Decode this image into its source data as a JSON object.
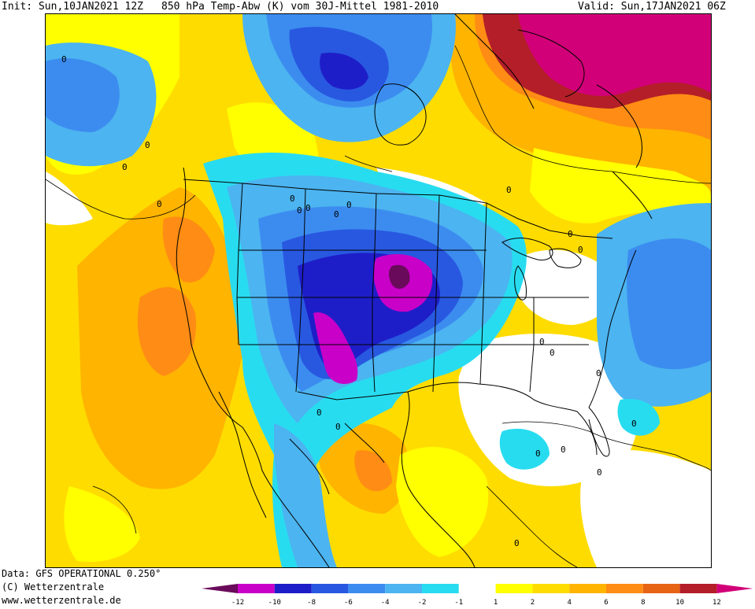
{
  "header": {
    "init": "Init: Sun,10JAN2021 12Z",
    "title": "850 hPa Temp-Abw (K) vom 30J-Mittel 1981-2010",
    "valid": "Valid: Sun,17JAN2021 06Z"
  },
  "footer": {
    "data_source": "Data: GFS OPERATIONAL 0.250°",
    "copyright": "(C) Wetterzentrale",
    "website": "www.wetterzentrale.de"
  },
  "legend": {
    "ticks": [
      "-12",
      "-10",
      "-8",
      "-6",
      "-4",
      "-2",
      "-1",
      "1",
      "2",
      "4",
      "6",
      "8",
      "10",
      "12"
    ],
    "colors": {
      "lt_-12": "#6a0a5a",
      "-12_-10": "#c800c8",
      "-10_-8": "#1e1ec8",
      "-8_-6": "#2858e0",
      "-6_-4": "#3c8cf0",
      "-4_-2": "#4cb4f0",
      "-2_-1": "#28dcf0",
      "-1_1": "#ffffff",
      "1_2": "#ffff00",
      "2_4": "#ffdc00",
      "4_6": "#ffb400",
      "6_8": "#ff8c14",
      "8_10": "#e66414",
      "10_12": "#b41e28",
      "gt_12": "#d20078"
    }
  },
  "map": {
    "contour_labels": [
      "0",
      "0",
      "0",
      "0",
      "0",
      "0",
      "0",
      "0",
      "0",
      "0",
      "0",
      "0",
      "0",
      "0",
      "0",
      "0",
      "0",
      "0",
      "0",
      "0",
      "0",
      "0"
    ]
  }
}
